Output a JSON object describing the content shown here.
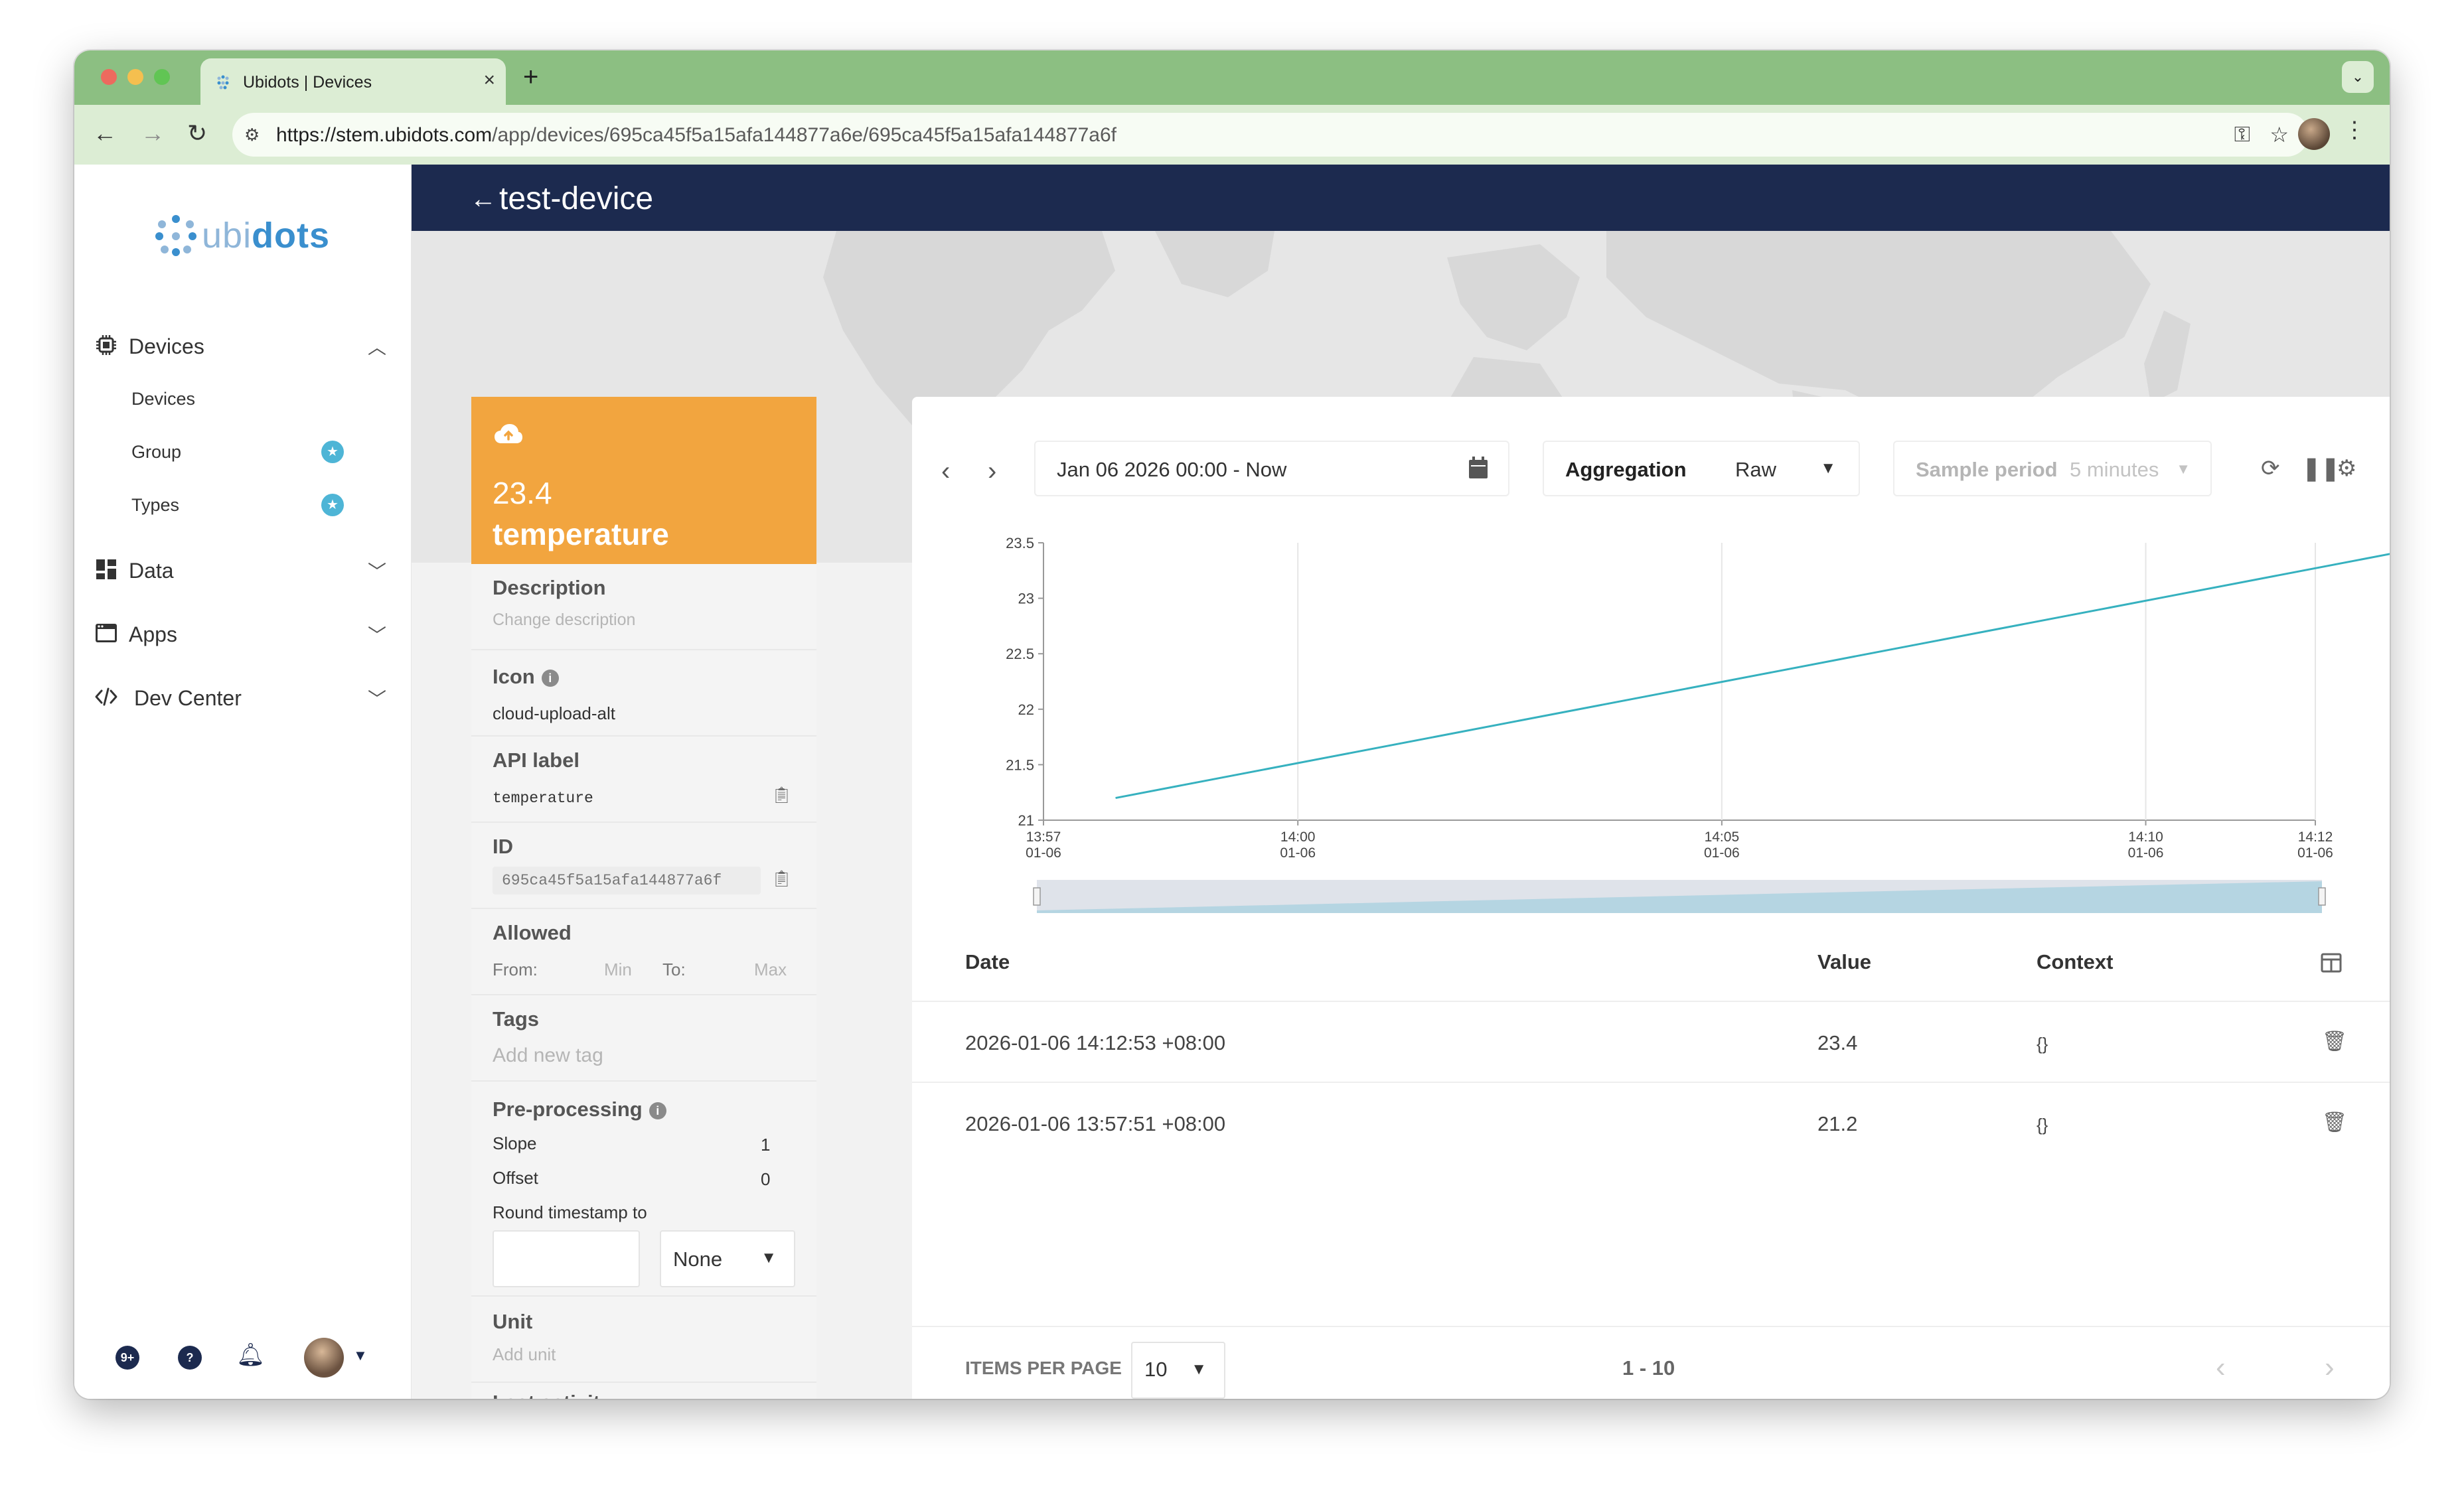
{
  "browser": {
    "tab_title": "Ubidots | Devices",
    "new_tab": "+",
    "url_host": "https://stem.ubidots.com",
    "url_path": "/app/devices/695ca45f5a15afa144877a6e/695ca45f5a15afa144877a6f"
  },
  "sidebar": {
    "logo_light": "ubi",
    "logo_bold": "dots",
    "sections": {
      "devices": {
        "label": "Devices",
        "icon": "chip-icon",
        "expanded": true
      },
      "data": {
        "label": "Data",
        "icon": "dashboard-icon"
      },
      "apps": {
        "label": "Apps",
        "icon": "window-icon"
      },
      "dev_center": {
        "label": "Dev Center",
        "icon": "code-icon"
      }
    },
    "device_items": [
      {
        "label": "Devices"
      },
      {
        "label": "Group",
        "badge": "star-icon"
      },
      {
        "label": "Types",
        "badge": "star-icon"
      }
    ],
    "bottom": {
      "updates_badge": "9+",
      "help": "?"
    }
  },
  "header": {
    "title": "test-device"
  },
  "variable": {
    "icon": "cloud-upload-alt",
    "last_value": "23.4",
    "name": "temperature",
    "description_label": "Description",
    "description_placeholder": "Change description",
    "icon_label": "Icon",
    "icon_value": "cloud-upload-alt",
    "api_label_label": "API label",
    "api_label_value": "temperature",
    "id_label": "ID",
    "id_value": "695ca45f5a15afa144877a6f",
    "allowed_label": "Allowed",
    "from_label": "From:",
    "min_placeholder": "Min",
    "to_label": "To:",
    "max_placeholder": "Max",
    "tags_label": "Tags",
    "tags_placeholder": "Add new tag",
    "preprocessing_label": "Pre-processing",
    "slope_label": "Slope",
    "slope_value": "1",
    "offset_label": "Offset",
    "offset_value": "0",
    "round_label": "Round timestamp to",
    "round_value": "None",
    "unit_label": "Unit",
    "unit_placeholder": "Add unit",
    "last_activity_label": "Last activity"
  },
  "controls": {
    "date_range": "Jan 06 2026 00:00 - Now",
    "aggregation_label": "Aggregation",
    "aggregation_value": "Raw",
    "sample_period_label": "Sample period",
    "sample_period_value": "5 minutes"
  },
  "chart_data": {
    "type": "line",
    "y_ticks": [
      "23.5",
      "23",
      "22.5",
      "22",
      "21.5",
      "21"
    ],
    "x_ticks": [
      {
        "time": "13:57",
        "date": "01-06"
      },
      {
        "time": "14:00",
        "date": "01-06"
      },
      {
        "time": "14:05",
        "date": "01-06"
      },
      {
        "time": "14:10",
        "date": "01-06"
      },
      {
        "time": "14:12",
        "date": "01-06"
      }
    ],
    "ylim": [
      21,
      23.5
    ],
    "xlim": [
      "2026-01-06 13:57",
      "2026-01-06 14:12"
    ],
    "grid": true,
    "series": [
      {
        "x": [
          "2026-01-06 13:57:51",
          "2026-01-06 14:12:53"
        ],
        "values": [
          21.2,
          23.4
        ],
        "color": "#36b1bf"
      }
    ]
  },
  "table": {
    "columns": {
      "date": "Date",
      "value": "Value",
      "context": "Context"
    },
    "rows": [
      {
        "date": "2026-01-06 14:12:53 +08:00",
        "value": "23.4",
        "context": "{}"
      },
      {
        "date": "2026-01-06 13:57:51 +08:00",
        "value": "21.2",
        "context": "{}"
      }
    ]
  },
  "pagination": {
    "items_per_page_label": "ITEMS PER PAGE",
    "items_per_page": "10",
    "range": "1 - 10"
  },
  "colors": {
    "header_navy": "#1c2a4f",
    "variable_orange": "#f2a53f",
    "series_teal": "#36b1bf",
    "brand_blue": "#3a8fce",
    "badge_cyan": "#4eb5d6"
  }
}
